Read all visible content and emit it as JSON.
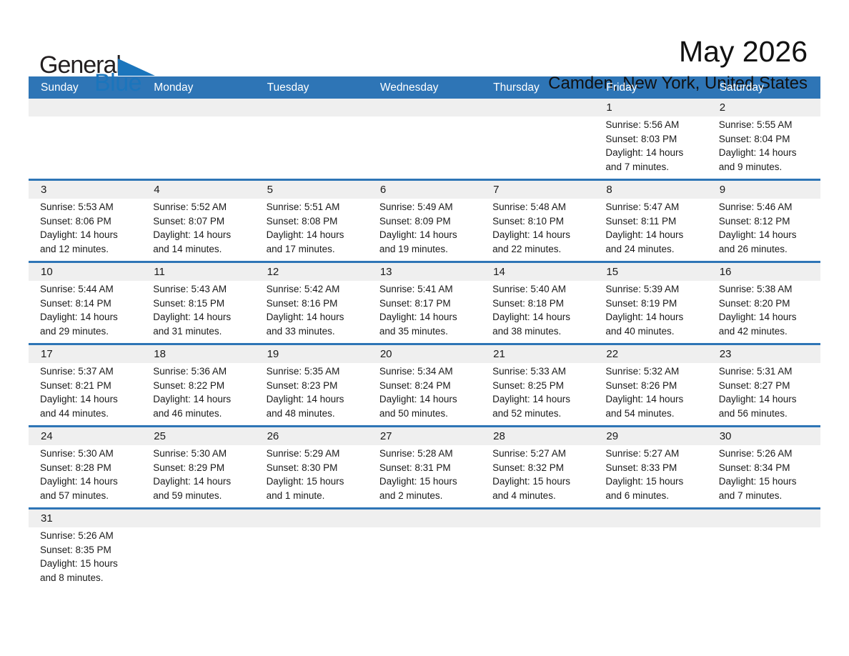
{
  "logo": {
    "text_general": "General",
    "text_blue": "Blue"
  },
  "header": {
    "title": "May 2026",
    "subtitle": "Camden, New York, United States"
  },
  "colors": {
    "header_bar_blue": "#2e75b6",
    "divider_blue": "#2e75b6",
    "day_band_gray": "#efefef",
    "logo_blue": "#1b75bc",
    "text_dark": "#1a1a1a"
  },
  "calendar": {
    "weekday_headers": [
      "Sunday",
      "Monday",
      "Tuesday",
      "Wednesday",
      "Thursday",
      "Friday",
      "Saturday"
    ],
    "labels": {
      "sunrise_prefix": "Sunrise: ",
      "sunset_prefix": "Sunset: ",
      "daylight_prefix": "Daylight: "
    },
    "weeks": [
      [
        null,
        null,
        null,
        null,
        null,
        {
          "day": "1",
          "sunrise": "5:56 AM",
          "sunset": "8:03 PM",
          "daylight": "14 hours and 7 minutes."
        },
        {
          "day": "2",
          "sunrise": "5:55 AM",
          "sunset": "8:04 PM",
          "daylight": "14 hours and 9 minutes."
        }
      ],
      [
        {
          "day": "3",
          "sunrise": "5:53 AM",
          "sunset": "8:06 PM",
          "daylight": "14 hours and 12 minutes."
        },
        {
          "day": "4",
          "sunrise": "5:52 AM",
          "sunset": "8:07 PM",
          "daylight": "14 hours and 14 minutes."
        },
        {
          "day": "5",
          "sunrise": "5:51 AM",
          "sunset": "8:08 PM",
          "daylight": "14 hours and 17 minutes."
        },
        {
          "day": "6",
          "sunrise": "5:49 AM",
          "sunset": "8:09 PM",
          "daylight": "14 hours and 19 minutes."
        },
        {
          "day": "7",
          "sunrise": "5:48 AM",
          "sunset": "8:10 PM",
          "daylight": "14 hours and 22 minutes."
        },
        {
          "day": "8",
          "sunrise": "5:47 AM",
          "sunset": "8:11 PM",
          "daylight": "14 hours and 24 minutes."
        },
        {
          "day": "9",
          "sunrise": "5:46 AM",
          "sunset": "8:12 PM",
          "daylight": "14 hours and 26 minutes."
        }
      ],
      [
        {
          "day": "10",
          "sunrise": "5:44 AM",
          "sunset": "8:14 PM",
          "daylight": "14 hours and 29 minutes."
        },
        {
          "day": "11",
          "sunrise": "5:43 AM",
          "sunset": "8:15 PM",
          "daylight": "14 hours and 31 minutes."
        },
        {
          "day": "12",
          "sunrise": "5:42 AM",
          "sunset": "8:16 PM",
          "daylight": "14 hours and 33 minutes."
        },
        {
          "day": "13",
          "sunrise": "5:41 AM",
          "sunset": "8:17 PM",
          "daylight": "14 hours and 35 minutes."
        },
        {
          "day": "14",
          "sunrise": "5:40 AM",
          "sunset": "8:18 PM",
          "daylight": "14 hours and 38 minutes."
        },
        {
          "day": "15",
          "sunrise": "5:39 AM",
          "sunset": "8:19 PM",
          "daylight": "14 hours and 40 minutes."
        },
        {
          "day": "16",
          "sunrise": "5:38 AM",
          "sunset": "8:20 PM",
          "daylight": "14 hours and 42 minutes."
        }
      ],
      [
        {
          "day": "17",
          "sunrise": "5:37 AM",
          "sunset": "8:21 PM",
          "daylight": "14 hours and 44 minutes."
        },
        {
          "day": "18",
          "sunrise": "5:36 AM",
          "sunset": "8:22 PM",
          "daylight": "14 hours and 46 minutes."
        },
        {
          "day": "19",
          "sunrise": "5:35 AM",
          "sunset": "8:23 PM",
          "daylight": "14 hours and 48 minutes."
        },
        {
          "day": "20",
          "sunrise": "5:34 AM",
          "sunset": "8:24 PM",
          "daylight": "14 hours and 50 minutes."
        },
        {
          "day": "21",
          "sunrise": "5:33 AM",
          "sunset": "8:25 PM",
          "daylight": "14 hours and 52 minutes."
        },
        {
          "day": "22",
          "sunrise": "5:32 AM",
          "sunset": "8:26 PM",
          "daylight": "14 hours and 54 minutes."
        },
        {
          "day": "23",
          "sunrise": "5:31 AM",
          "sunset": "8:27 PM",
          "daylight": "14 hours and 56 minutes."
        }
      ],
      [
        {
          "day": "24",
          "sunrise": "5:30 AM",
          "sunset": "8:28 PM",
          "daylight": "14 hours and 57 minutes."
        },
        {
          "day": "25",
          "sunrise": "5:30 AM",
          "sunset": "8:29 PM",
          "daylight": "14 hours and 59 minutes."
        },
        {
          "day": "26",
          "sunrise": "5:29 AM",
          "sunset": "8:30 PM",
          "daylight": "15 hours and 1 minute."
        },
        {
          "day": "27",
          "sunrise": "5:28 AM",
          "sunset": "8:31 PM",
          "daylight": "15 hours and 2 minutes."
        },
        {
          "day": "28",
          "sunrise": "5:27 AM",
          "sunset": "8:32 PM",
          "daylight": "15 hours and 4 minutes."
        },
        {
          "day": "29",
          "sunrise": "5:27 AM",
          "sunset": "8:33 PM",
          "daylight": "15 hours and 6 minutes."
        },
        {
          "day": "30",
          "sunrise": "5:26 AM",
          "sunset": "8:34 PM",
          "daylight": "15 hours and 7 minutes."
        }
      ],
      [
        {
          "day": "31",
          "sunrise": "5:26 AM",
          "sunset": "8:35 PM",
          "daylight": "15 hours and 8 minutes."
        },
        null,
        null,
        null,
        null,
        null,
        null
      ]
    ]
  }
}
